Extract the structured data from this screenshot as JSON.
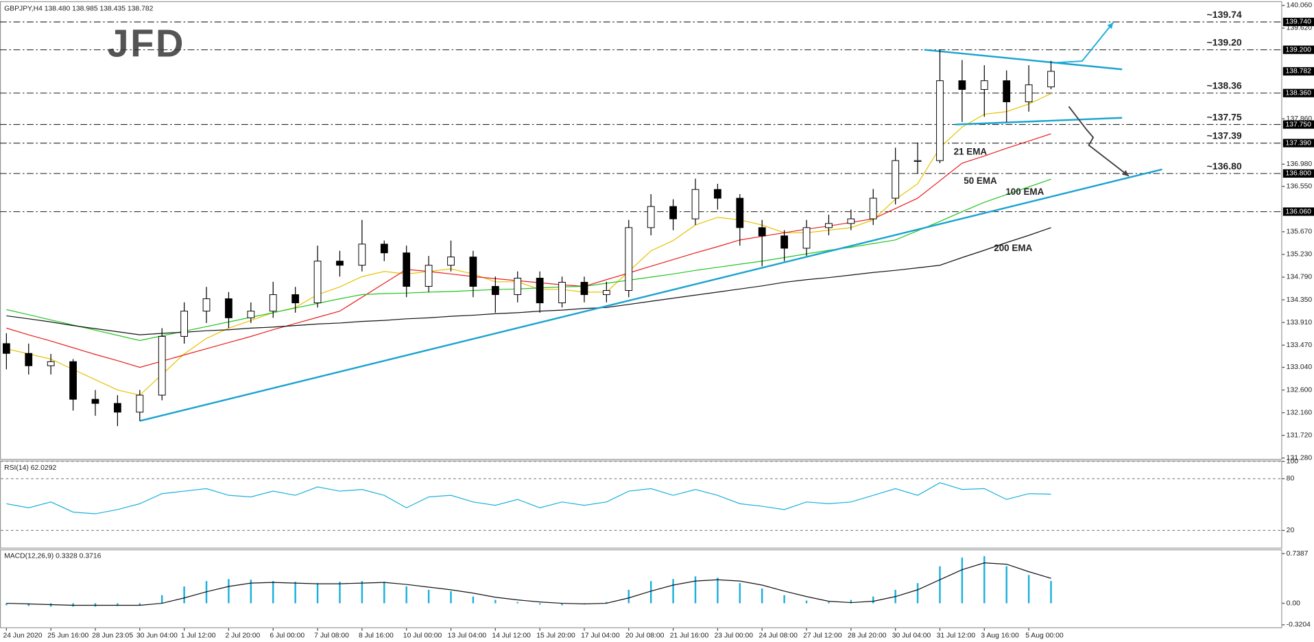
{
  "chart_data": [
    {
      "type": "candlestick",
      "title": "GBPJPY,H4  138.480 138.985 138.435 138.782",
      "watermark": "JFD",
      "categories": [
        "24 Jun 2020",
        null,
        "25 Jun 16:00",
        null,
        "28 Jun 23:05",
        null,
        "30 Jun 04:00",
        null,
        "1 Jul 12:00",
        null,
        "2 Jul 20:00",
        null,
        "6 Jul 00:00",
        null,
        "7 Jul 08:00",
        null,
        "8 Jul 16:00",
        null,
        "10 Jul 00:00",
        null,
        "13 Jul 04:00",
        null,
        "14 Jul 12:00",
        null,
        "15 Jul 20:00",
        null,
        "17 Jul 04:00",
        null,
        "20 Jul 08:00",
        null,
        "21 Jul 16:00",
        null,
        "23 Jul 00:00",
        null,
        "24 Jul 08:00",
        null,
        "27 Jul 12:00",
        null,
        "28 Jul 20:00",
        null,
        "30 Jul 04:00",
        null,
        "31 Jul 12:00",
        null,
        "3 Aug 16:00",
        null,
        "5 Aug 00:00",
        null
      ],
      "open": [
        133.5,
        133.31,
        133.07,
        133.15,
        132.42,
        132.34,
        132.17,
        132.5,
        133.64,
        134.13,
        134.37,
        134.0,
        134.13,
        134.45,
        134.29,
        135.1,
        135.02,
        135.43,
        135.26,
        134.61,
        135.02,
        135.18,
        134.61,
        134.45,
        134.77,
        134.29,
        134.69,
        134.45,
        134.53,
        135.75,
        136.16,
        135.92,
        136.49,
        136.32,
        135.75,
        135.59,
        135.35,
        135.75,
        135.83,
        135.92,
        136.32,
        137.05,
        137.05,
        138.6,
        138.43,
        138.6,
        138.19,
        138.48
      ],
      "high": [
        133.7,
        133.5,
        133.3,
        133.2,
        132.6,
        132.5,
        132.6,
        133.8,
        134.3,
        134.6,
        134.5,
        134.3,
        134.7,
        134.6,
        135.4,
        135.3,
        135.9,
        135.5,
        135.4,
        135.2,
        135.5,
        135.3,
        134.8,
        134.9,
        134.9,
        134.8,
        134.8,
        134.7,
        135.9,
        136.4,
        136.3,
        136.7,
        136.6,
        136.4,
        135.9,
        135.7,
        135.9,
        136.0,
        136.1,
        136.5,
        137.3,
        137.4,
        139.2,
        139.0,
        138.9,
        138.8,
        138.9,
        138.985
      ],
      "low": [
        133.0,
        132.9,
        132.9,
        132.2,
        132.1,
        131.9,
        132.0,
        132.4,
        133.5,
        133.9,
        133.8,
        133.9,
        134.0,
        134.1,
        134.2,
        134.8,
        134.9,
        135.1,
        134.4,
        134.5,
        134.9,
        134.4,
        134.1,
        134.3,
        134.1,
        134.2,
        134.3,
        134.3,
        134.4,
        135.6,
        135.7,
        135.8,
        136.1,
        135.4,
        135.0,
        135.1,
        135.2,
        135.6,
        135.7,
        135.8,
        136.2,
        136.8,
        137.0,
        137.8,
        137.9,
        137.8,
        138.0,
        138.435
      ],
      "close": [
        133.31,
        133.07,
        133.15,
        132.42,
        132.34,
        132.17,
        132.5,
        133.64,
        134.13,
        134.37,
        134.0,
        134.13,
        134.45,
        134.29,
        135.1,
        135.02,
        135.43,
        135.26,
        134.61,
        135.02,
        135.18,
        134.61,
        134.45,
        134.77,
        134.29,
        134.69,
        134.45,
        134.53,
        135.75,
        136.16,
        135.92,
        136.49,
        136.32,
        135.75,
        135.59,
        135.35,
        135.75,
        135.83,
        135.92,
        136.32,
        137.05,
        137.05,
        138.6,
        138.43,
        138.6,
        138.19,
        138.52,
        138.782
      ],
      "series": [
        {
          "name": "21 EMA",
          "color": "#e6c200",
          "values": [
            133.4,
            133.3,
            133.2,
            133.0,
            132.8,
            132.6,
            132.5,
            132.9,
            133.3,
            133.6,
            133.8,
            133.95,
            134.1,
            134.2,
            134.45,
            134.6,
            134.8,
            134.9,
            134.85,
            134.9,
            134.95,
            134.85,
            134.7,
            134.7,
            134.55,
            134.55,
            134.5,
            134.5,
            134.9,
            135.3,
            135.5,
            135.8,
            135.95,
            135.9,
            135.8,
            135.65,
            135.65,
            135.7,
            135.75,
            135.9,
            136.3,
            136.6,
            137.3,
            137.7,
            137.95,
            138.0,
            138.15,
            138.35
          ]
        },
        {
          "name": "50 EMA",
          "color": "#e81e1e",
          "values": [
            133.8,
            133.67,
            133.55,
            133.42,
            133.29,
            133.17,
            133.04,
            133.16,
            133.28,
            133.4,
            133.52,
            133.64,
            133.77,
            133.89,
            134.01,
            134.13,
            134.4,
            134.67,
            134.94,
            134.9,
            134.85,
            134.8,
            134.76,
            134.72,
            134.68,
            134.64,
            134.61,
            134.74,
            134.87,
            135.0,
            135.13,
            135.26,
            135.38,
            135.51,
            135.58,
            135.65,
            135.72,
            135.78,
            135.85,
            135.92,
            136.12,
            136.32,
            136.66,
            137.0,
            137.14,
            137.29,
            137.43,
            137.57
          ]
        },
        {
          "name": "100 EMA",
          "color": "#22c422",
          "values": [
            134.16,
            134.06,
            133.96,
            133.86,
            133.76,
            133.66,
            133.56,
            133.65,
            133.74,
            133.83,
            133.92,
            134.01,
            134.1,
            134.19,
            134.28,
            134.37,
            134.45,
            134.47,
            134.48,
            134.5,
            134.51,
            134.53,
            134.55,
            134.56,
            134.58,
            134.6,
            134.61,
            134.67,
            134.73,
            134.79,
            134.85,
            134.92,
            134.98,
            135.04,
            135.1,
            135.17,
            135.24,
            135.31,
            135.37,
            135.44,
            135.51,
            135.69,
            135.87,
            136.06,
            136.24,
            136.39,
            136.54,
            136.69
          ]
        },
        {
          "name": "200 EMA",
          "color": "#111111",
          "values": [
            134.04,
            133.98,
            133.92,
            133.85,
            133.79,
            133.73,
            133.67,
            133.7,
            133.72,
            133.75,
            133.77,
            133.8,
            133.82,
            133.85,
            133.88,
            133.9,
            133.93,
            133.95,
            133.98,
            134.0,
            134.03,
            134.05,
            134.08,
            134.1,
            134.13,
            134.15,
            134.18,
            134.2,
            134.26,
            134.32,
            134.38,
            134.44,
            134.5,
            134.56,
            134.62,
            134.69,
            134.74,
            134.78,
            134.83,
            134.88,
            134.92,
            134.97,
            135.02,
            135.17,
            135.31,
            135.46,
            135.6,
            135.75
          ]
        }
      ],
      "xlim": [
        -0.1,
        57.4
      ],
      "ylim": [
        131.28,
        140.06
      ],
      "yticks": [
        {
          "value": 140.06,
          "label": "140.060"
        },
        {
          "value": 139.62,
          "label": "139.620"
        },
        {
          "value": 137.86,
          "label": "137.860"
        },
        {
          "value": 136.98,
          "label": "136.980"
        },
        {
          "value": 136.55,
          "label": "136.550"
        },
        {
          "value": 135.67,
          "label": "135.670"
        },
        {
          "value": 135.23,
          "label": "135.230"
        },
        {
          "value": 134.79,
          "label": "134.790"
        },
        {
          "value": 134.35,
          "label": "134.350"
        },
        {
          "value": 133.91,
          "label": "133.910"
        },
        {
          "value": 133.47,
          "label": "133.470"
        },
        {
          "value": 133.04,
          "label": "133.040"
        },
        {
          "value": 132.6,
          "label": "132.600"
        },
        {
          "value": 132.16,
          "label": "132.160"
        },
        {
          "value": 131.72,
          "label": "131.720"
        },
        {
          "value": 131.28,
          "label": "131.280"
        }
      ],
      "levels": [
        {
          "value": 139.74,
          "label": "139.740",
          "annotation": "~139.74",
          "color": "#1ab0dc"
        },
        {
          "value": 139.2,
          "label": "139.200",
          "annotation": "~139.20",
          "color": "#1ab0dc"
        },
        {
          "value": 138.36,
          "label": "138.360",
          "annotation": "~138.36",
          "color": "#1ab0dc"
        },
        {
          "value": 137.75,
          "label": "137.750",
          "annotation": "~137.75",
          "color": "#666666"
        },
        {
          "value": 137.39,
          "label": "137.390",
          "annotation": "~137.39",
          "color": "#666666"
        },
        {
          "value": 136.8,
          "label": "136.800",
          "annotation": "~136.80",
          "color": "#666666"
        },
        {
          "value": 136.06,
          "label": "136.060",
          "annotation": null,
          "color": "#666666"
        }
      ],
      "last_price": {
        "value": 138.782,
        "label": "138.782"
      },
      "trendlines": [
        {
          "color": "#1aa3d0",
          "x": [
            6,
            52
          ],
          "y": [
            132.0,
            136.88
          ]
        },
        {
          "color": "#1aa3d0",
          "x": [
            41.3,
            50.2
          ],
          "y": [
            139.2,
            138.82
          ]
        },
        {
          "color": "#1aa3d0",
          "x": [
            42.7,
            50.2
          ],
          "y": [
            137.75,
            137.88
          ]
        }
      ],
      "arrows": [
        {
          "color": "#1ab0dc",
          "x": [
            47.2,
            48.4,
            49.8
          ],
          "y": [
            138.95,
            138.98,
            139.73
          ]
        },
        {
          "color": "#444444",
          "x": [
            47.8,
            48.6,
            48.9,
            48.7,
            50.5
          ],
          "y": [
            138.1,
            137.65,
            137.5,
            137.35,
            136.75
          ]
        }
      ]
    },
    {
      "type": "line",
      "title": "RSI(14) 62.0292",
      "color": "#1ab0dc",
      "values": [
        51.0,
        46.2,
        53.0,
        41.3,
        39.3,
        44.2,
        51.0,
        62.6,
        65.5,
        68.4,
        60.7,
        58.8,
        65.5,
        60.7,
        70.4,
        65.5,
        67.5,
        60.7,
        46.2,
        58.8,
        60.7,
        53.0,
        49.1,
        55.9,
        46.2,
        53.0,
        49.1,
        53.0,
        65.5,
        68.4,
        60.7,
        67.5,
        60.7,
        51.0,
        48.1,
        44.2,
        53.0,
        51.0,
        53.0,
        60.7,
        68.4,
        60.7,
        75.2,
        67.5,
        68.4,
        55.9,
        62.6,
        62.0292
      ],
      "xlim": [
        -0.1,
        57.4
      ],
      "ylim": [
        0,
        100
      ],
      "yticks": [
        20,
        80,
        100
      ]
    },
    {
      "type": "macd",
      "title": "MACD(12,26,9) 0.3328 0.3716",
      "histogram_color": "#1ab0dc",
      "signal_color": "#111111",
      "histogram": [
        -0.03,
        -0.04,
        -0.05,
        -0.05,
        -0.05,
        -0.04,
        -0.03,
        0.12,
        0.25,
        0.33,
        0.36,
        0.35,
        0.33,
        0.32,
        0.3,
        0.32,
        0.33,
        0.32,
        0.25,
        0.2,
        0.18,
        0.1,
        0.05,
        0.02,
        -0.02,
        -0.03,
        -0.01,
        0.02,
        0.2,
        0.33,
        0.36,
        0.4,
        0.38,
        0.3,
        0.22,
        0.12,
        0.04,
        0.02,
        0.05,
        0.1,
        0.2,
        0.3,
        0.55,
        0.68,
        0.7,
        0.55,
        0.42,
        0.3328
      ],
      "signal": [
        0.0,
        -0.01,
        -0.02,
        -0.03,
        -0.03,
        -0.03,
        -0.03,
        0.0,
        0.08,
        0.17,
        0.25,
        0.3,
        0.31,
        0.3,
        0.29,
        0.29,
        0.3,
        0.31,
        0.28,
        0.24,
        0.2,
        0.15,
        0.09,
        0.05,
        0.02,
        0.0,
        -0.01,
        0.0,
        0.08,
        0.18,
        0.27,
        0.33,
        0.35,
        0.33,
        0.27,
        0.18,
        0.1,
        0.03,
        0.01,
        0.03,
        0.1,
        0.2,
        0.35,
        0.5,
        0.6,
        0.58,
        0.47,
        0.3716
      ],
      "xlim": [
        -0.1,
        57.4
      ],
      "ylim": [
        -0.3204,
        0.7387
      ],
      "yticks": [
        0.7387,
        {
          "value": 0,
          "label": "0.00"
        },
        -0.3204
      ]
    }
  ]
}
